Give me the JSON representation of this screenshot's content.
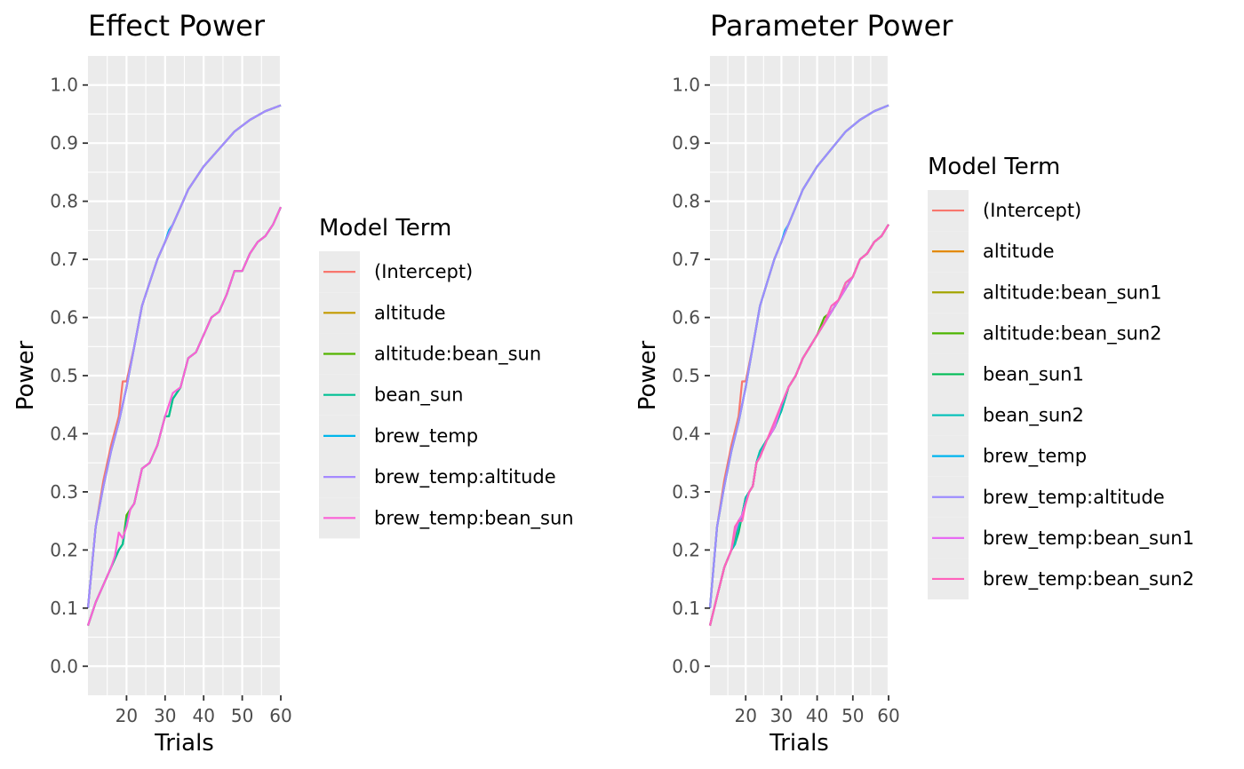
{
  "chart_data": [
    {
      "type": "line",
      "title": "Effect Power",
      "xlabel": "Trials",
      "ylabel": "Power",
      "xlim": [
        10,
        60
      ],
      "ylim": [
        -0.05,
        1.05
      ],
      "x_ticks": [
        20,
        30,
        40,
        50,
        60
      ],
      "y_ticks": [
        0.0,
        0.1,
        0.2,
        0.3,
        0.4,
        0.5,
        0.6,
        0.7,
        0.8,
        0.9,
        1.0
      ],
      "grid": true,
      "legend_title": "Model Term",
      "legend_position": "right",
      "series": [
        {
          "name": "(Intercept)",
          "color": "#F8766D",
          "x": [
            10,
            12,
            14,
            16,
            18,
            19,
            20,
            22,
            24,
            26,
            28,
            30,
            32,
            34,
            36,
            40,
            44,
            48,
            52,
            56,
            60
          ],
          "y": [
            0.1,
            0.24,
            0.32,
            0.38,
            0.43,
            0.49,
            0.49,
            0.55,
            0.62,
            0.66,
            0.7,
            0.73,
            0.76,
            0.79,
            0.82,
            0.86,
            0.89,
            0.92,
            0.94,
            0.955,
            0.965
          ]
        },
        {
          "name": "altitude",
          "color": "#C49A00",
          "x": [
            10,
            12,
            14,
            16,
            18,
            20,
            22,
            24,
            26,
            28,
            30,
            32,
            34,
            36,
            40,
            44,
            48,
            52,
            56,
            60
          ],
          "y": [
            0.1,
            0.24,
            0.31,
            0.37,
            0.42,
            0.48,
            0.55,
            0.62,
            0.66,
            0.7,
            0.73,
            0.76,
            0.79,
            0.82,
            0.86,
            0.89,
            0.92,
            0.94,
            0.955,
            0.965
          ]
        },
        {
          "name": "altitude:bean_sun",
          "color": "#53B400",
          "x": [
            10,
            12,
            14,
            16,
            18,
            19,
            20,
            21,
            22,
            24,
            26,
            28,
            30,
            31,
            32,
            34,
            36,
            38,
            40,
            42,
            44,
            46,
            48,
            50,
            52,
            54,
            56,
            58,
            60
          ],
          "y": [
            0.07,
            0.11,
            0.14,
            0.17,
            0.2,
            0.21,
            0.26,
            0.27,
            0.28,
            0.34,
            0.35,
            0.38,
            0.43,
            0.43,
            0.46,
            0.48,
            0.53,
            0.54,
            0.57,
            0.6,
            0.61,
            0.64,
            0.68,
            0.68,
            0.71,
            0.73,
            0.74,
            0.76,
            0.79
          ]
        },
        {
          "name": "bean_sun",
          "color": "#00C094",
          "x": [
            10,
            12,
            14,
            16,
            18,
            19,
            20,
            21,
            22,
            24,
            26,
            28,
            30,
            31,
            32,
            34,
            36,
            38,
            40,
            42,
            44,
            46,
            48,
            50,
            52,
            54,
            56,
            58,
            60
          ],
          "y": [
            0.07,
            0.11,
            0.14,
            0.17,
            0.2,
            0.21,
            0.25,
            0.27,
            0.28,
            0.34,
            0.35,
            0.38,
            0.43,
            0.43,
            0.46,
            0.48,
            0.53,
            0.54,
            0.57,
            0.6,
            0.61,
            0.64,
            0.68,
            0.68,
            0.71,
            0.73,
            0.74,
            0.76,
            0.79
          ]
        },
        {
          "name": "brew_temp",
          "color": "#00B6EB",
          "x": [
            10,
            12,
            14,
            16,
            18,
            20,
            22,
            24,
            26,
            28,
            30,
            31,
            32,
            34,
            36,
            40,
            44,
            48,
            52,
            56,
            60
          ],
          "y": [
            0.1,
            0.24,
            0.31,
            0.37,
            0.42,
            0.48,
            0.55,
            0.62,
            0.66,
            0.7,
            0.73,
            0.75,
            0.76,
            0.79,
            0.82,
            0.86,
            0.89,
            0.92,
            0.94,
            0.955,
            0.965
          ]
        },
        {
          "name": "brew_temp:altitude",
          "color": "#A58AFF",
          "x": [
            10,
            12,
            14,
            16,
            18,
            20,
            22,
            24,
            26,
            28,
            30,
            32,
            34,
            36,
            40,
            44,
            48,
            52,
            56,
            60
          ],
          "y": [
            0.1,
            0.24,
            0.31,
            0.37,
            0.42,
            0.48,
            0.55,
            0.62,
            0.66,
            0.7,
            0.73,
            0.76,
            0.79,
            0.82,
            0.86,
            0.89,
            0.92,
            0.94,
            0.955,
            0.965
          ]
        },
        {
          "name": "brew_temp:bean_sun",
          "color": "#FB61D7",
          "x": [
            10,
            12,
            14,
            16,
            17,
            18,
            19,
            20,
            21,
            22,
            24,
            26,
            28,
            30,
            32,
            34,
            36,
            38,
            40,
            42,
            44,
            46,
            48,
            50,
            52,
            54,
            56,
            58,
            60
          ],
          "y": [
            0.07,
            0.11,
            0.14,
            0.17,
            0.19,
            0.23,
            0.22,
            0.24,
            0.27,
            0.28,
            0.34,
            0.35,
            0.38,
            0.43,
            0.47,
            0.48,
            0.53,
            0.54,
            0.57,
            0.6,
            0.61,
            0.64,
            0.68,
            0.68,
            0.71,
            0.73,
            0.74,
            0.76,
            0.79
          ]
        }
      ]
    },
    {
      "type": "line",
      "title": "Parameter Power",
      "xlabel": "Trials",
      "ylabel": "Power",
      "xlim": [
        10,
        60
      ],
      "ylim": [
        -0.05,
        1.05
      ],
      "x_ticks": [
        20,
        30,
        40,
        50,
        60
      ],
      "y_ticks": [
        0.0,
        0.1,
        0.2,
        0.3,
        0.4,
        0.5,
        0.6,
        0.7,
        0.8,
        0.9,
        1.0
      ],
      "grid": true,
      "legend_title": "Model Term",
      "legend_position": "right",
      "series": [
        {
          "name": "(Intercept)",
          "color": "#F8766D",
          "x": [
            10,
            12,
            14,
            16,
            18,
            19,
            20,
            22,
            24,
            26,
            28,
            30,
            32,
            34,
            36,
            40,
            44,
            48,
            52,
            56,
            60
          ],
          "y": [
            0.1,
            0.24,
            0.32,
            0.38,
            0.43,
            0.49,
            0.49,
            0.55,
            0.62,
            0.66,
            0.7,
            0.73,
            0.76,
            0.79,
            0.82,
            0.86,
            0.89,
            0.92,
            0.94,
            0.955,
            0.965
          ]
        },
        {
          "name": "altitude",
          "color": "#E38900",
          "x": [
            10,
            12,
            14,
            16,
            18,
            20,
            22,
            24,
            26,
            28,
            30,
            32,
            34,
            36,
            40,
            44,
            48,
            52,
            56,
            60
          ],
          "y": [
            0.1,
            0.24,
            0.31,
            0.37,
            0.42,
            0.48,
            0.55,
            0.62,
            0.66,
            0.7,
            0.73,
            0.76,
            0.79,
            0.82,
            0.86,
            0.89,
            0.92,
            0.94,
            0.955,
            0.965
          ]
        },
        {
          "name": "altitude:bean_sun1",
          "color": "#A3A500",
          "x": [
            10,
            12,
            14,
            16,
            17,
            18,
            19,
            20,
            21,
            22,
            23,
            24,
            26,
            28,
            30,
            32,
            34,
            36,
            38,
            40,
            42,
            44,
            46,
            48,
            50,
            52,
            54,
            56,
            58,
            60
          ],
          "y": [
            0.07,
            0.12,
            0.17,
            0.2,
            0.22,
            0.25,
            0.26,
            0.29,
            0.3,
            0.31,
            0.35,
            0.36,
            0.39,
            0.41,
            0.44,
            0.48,
            0.5,
            0.53,
            0.55,
            0.57,
            0.59,
            0.61,
            0.63,
            0.65,
            0.67,
            0.7,
            0.71,
            0.73,
            0.74,
            0.76
          ]
        },
        {
          "name": "altitude:bean_sun2",
          "color": "#4CB400",
          "x": [
            10,
            12,
            14,
            16,
            17,
            18,
            19,
            20,
            21,
            22,
            23,
            24,
            26,
            28,
            30,
            32,
            34,
            36,
            38,
            40,
            42,
            44,
            46,
            48,
            50,
            52,
            54,
            56,
            58,
            60
          ],
          "y": [
            0.07,
            0.12,
            0.17,
            0.2,
            0.21,
            0.24,
            0.26,
            0.29,
            0.3,
            0.31,
            0.35,
            0.37,
            0.39,
            0.41,
            0.44,
            0.48,
            0.5,
            0.53,
            0.55,
            0.57,
            0.6,
            0.61,
            0.63,
            0.66,
            0.67,
            0.7,
            0.71,
            0.73,
            0.74,
            0.76
          ]
        },
        {
          "name": "bean_sun1",
          "color": "#00BC56",
          "x": [
            10,
            12,
            14,
            16,
            17,
            18,
            19,
            20,
            21,
            22,
            23,
            24,
            26,
            28,
            30,
            32,
            34,
            36,
            38,
            40,
            42,
            44,
            46,
            48,
            50,
            52,
            54,
            56,
            58,
            60
          ],
          "y": [
            0.07,
            0.12,
            0.17,
            0.2,
            0.21,
            0.23,
            0.26,
            0.29,
            0.3,
            0.31,
            0.35,
            0.37,
            0.39,
            0.41,
            0.44,
            0.48,
            0.5,
            0.53,
            0.55,
            0.57,
            0.59,
            0.61,
            0.63,
            0.65,
            0.67,
            0.7,
            0.71,
            0.73,
            0.74,
            0.76
          ]
        },
        {
          "name": "bean_sun2",
          "color": "#00C0B8",
          "x": [
            10,
            12,
            14,
            16,
            17,
            18,
            19,
            20,
            21,
            22,
            23,
            24,
            26,
            28,
            30,
            32,
            34,
            36,
            38,
            40,
            42,
            44,
            46,
            48,
            50,
            52,
            54,
            56,
            58,
            60
          ],
          "y": [
            0.07,
            0.12,
            0.17,
            0.2,
            0.21,
            0.24,
            0.26,
            0.29,
            0.3,
            0.31,
            0.35,
            0.37,
            0.39,
            0.41,
            0.44,
            0.48,
            0.5,
            0.53,
            0.55,
            0.57,
            0.59,
            0.61,
            0.63,
            0.65,
            0.67,
            0.7,
            0.71,
            0.73,
            0.74,
            0.76
          ]
        },
        {
          "name": "brew_temp",
          "color": "#00B4EF",
          "x": [
            10,
            12,
            14,
            16,
            18,
            20,
            22,
            24,
            26,
            28,
            30,
            31,
            32,
            34,
            36,
            40,
            44,
            48,
            52,
            56,
            60
          ],
          "y": [
            0.1,
            0.24,
            0.31,
            0.37,
            0.42,
            0.48,
            0.55,
            0.62,
            0.66,
            0.7,
            0.73,
            0.75,
            0.76,
            0.79,
            0.82,
            0.86,
            0.89,
            0.92,
            0.94,
            0.955,
            0.965
          ]
        },
        {
          "name": "brew_temp:altitude",
          "color": "#9C8DFF",
          "x": [
            10,
            12,
            14,
            16,
            18,
            20,
            22,
            24,
            26,
            28,
            30,
            32,
            34,
            36,
            40,
            44,
            48,
            52,
            56,
            60
          ],
          "y": [
            0.1,
            0.24,
            0.31,
            0.37,
            0.42,
            0.48,
            0.55,
            0.62,
            0.66,
            0.7,
            0.73,
            0.76,
            0.79,
            0.82,
            0.86,
            0.89,
            0.92,
            0.94,
            0.955,
            0.965
          ]
        },
        {
          "name": "brew_temp:bean_sun1",
          "color": "#E76BF3",
          "x": [
            10,
            12,
            14,
            16,
            17,
            18,
            19,
            20,
            21,
            22,
            23,
            24,
            26,
            28,
            30,
            32,
            34,
            36,
            38,
            40,
            42,
            44,
            46,
            48,
            50,
            52,
            54,
            56,
            58,
            60
          ],
          "y": [
            0.07,
            0.12,
            0.17,
            0.2,
            0.23,
            0.25,
            0.26,
            0.28,
            0.3,
            0.31,
            0.35,
            0.36,
            0.39,
            0.41,
            0.45,
            0.48,
            0.5,
            0.53,
            0.55,
            0.57,
            0.59,
            0.61,
            0.63,
            0.65,
            0.67,
            0.7,
            0.71,
            0.73,
            0.74,
            0.76
          ]
        },
        {
          "name": "brew_temp:bean_sun2",
          "color": "#FF62BC",
          "x": [
            10,
            12,
            14,
            16,
            17,
            18,
            19,
            20,
            21,
            22,
            23,
            24,
            26,
            28,
            30,
            32,
            34,
            36,
            38,
            40,
            42,
            44,
            46,
            48,
            50,
            52,
            54,
            56,
            58,
            60
          ],
          "y": [
            0.07,
            0.12,
            0.17,
            0.2,
            0.24,
            0.25,
            0.25,
            0.28,
            0.3,
            0.31,
            0.35,
            0.36,
            0.39,
            0.42,
            0.45,
            0.48,
            0.5,
            0.53,
            0.55,
            0.57,
            0.59,
            0.62,
            0.63,
            0.66,
            0.67,
            0.7,
            0.71,
            0.73,
            0.74,
            0.76
          ]
        }
      ]
    }
  ]
}
